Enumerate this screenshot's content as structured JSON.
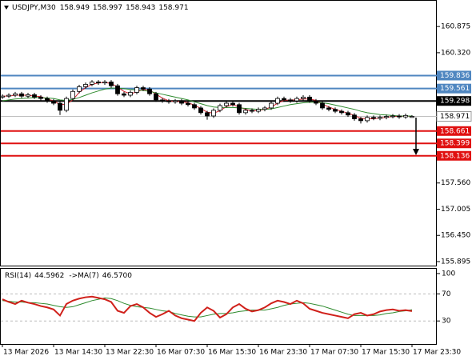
{
  "chart_data": [
    {
      "type": "candlestick",
      "symbol": "USDJPY,M30",
      "categories": [
        "13 Mar 2026",
        null,
        null,
        null,
        null,
        null,
        null,
        null,
        "13 Mar 14:30",
        null,
        null,
        null,
        null,
        null,
        null,
        null,
        "13 Mar 22:30",
        null,
        null,
        null,
        null,
        null,
        null,
        null,
        "16 Mar 07:30",
        null,
        null,
        null,
        null,
        null,
        null,
        null,
        "16 Mar 15:30",
        null,
        null,
        null,
        null,
        null,
        null,
        null,
        "16 Mar 23:30",
        null,
        null,
        null,
        null,
        null,
        null,
        null,
        "17 Mar 07:30",
        null,
        null,
        null,
        null,
        null,
        null,
        null,
        "17 Mar 15:30",
        null,
        null,
        null,
        null,
        null,
        null,
        null,
        "17 Mar 23:30"
      ],
      "open": [
        159.38,
        159.4,
        159.42,
        159.45,
        159.4,
        159.43,
        159.38,
        159.35,
        159.3,
        159.25,
        159.1,
        159.35,
        159.5,
        159.6,
        159.65,
        159.7,
        159.68,
        159.7,
        159.62,
        159.45,
        159.42,
        159.48,
        159.58,
        159.55,
        159.45,
        159.32,
        159.3,
        159.28,
        159.3,
        159.25,
        159.22,
        159.15,
        159.05,
        158.98,
        159.1,
        159.2,
        159.25,
        159.22,
        159.05,
        159.1,
        159.08,
        159.12,
        159.15,
        159.25,
        159.35,
        159.32,
        159.3,
        159.35,
        159.38,
        159.3,
        159.25,
        159.15,
        159.12,
        159.08,
        159.05,
        159.0,
        158.92,
        158.88,
        158.95,
        158.93,
        158.95,
        158.97,
        158.98,
        158.96,
        158.949
      ],
      "high": [
        159.44,
        159.46,
        159.49,
        159.49,
        159.47,
        159.47,
        159.42,
        159.39,
        159.34,
        159.29,
        159.39,
        159.54,
        159.64,
        159.69,
        159.74,
        159.74,
        159.74,
        159.74,
        159.66,
        159.49,
        159.52,
        159.62,
        159.62,
        159.59,
        159.49,
        159.36,
        159.34,
        159.34,
        159.34,
        159.29,
        159.26,
        159.19,
        159.09,
        159.14,
        159.24,
        159.29,
        159.29,
        159.26,
        159.14,
        159.14,
        159.16,
        159.19,
        159.29,
        159.39,
        159.39,
        159.36,
        159.39,
        159.42,
        159.42,
        159.34,
        159.29,
        159.19,
        159.16,
        159.12,
        159.09,
        159.04,
        158.96,
        158.99,
        158.99,
        158.99,
        159.01,
        159.02,
        159.02,
        159.03,
        158.997
      ],
      "low": [
        159.34,
        159.36,
        159.38,
        159.36,
        159.36,
        159.34,
        159.31,
        159.26,
        159.21,
        159.0,
        159.06,
        159.31,
        159.46,
        159.56,
        159.61,
        159.64,
        159.64,
        159.58,
        159.41,
        159.38,
        159.38,
        159.44,
        159.51,
        159.41,
        159.28,
        159.26,
        159.24,
        159.24,
        159.21,
        159.18,
        159.11,
        159.01,
        158.9,
        158.94,
        159.06,
        159.16,
        159.18,
        159.01,
        159.01,
        159.04,
        159.04,
        159.08,
        159.11,
        159.21,
        159.28,
        159.26,
        159.26,
        159.31,
        159.26,
        159.21,
        159.11,
        159.08,
        159.04,
        159.01,
        158.96,
        158.88,
        158.82,
        158.84,
        158.89,
        158.89,
        158.91,
        158.93,
        158.92,
        158.92,
        158.943
      ],
      "close": [
        159.4,
        159.42,
        159.45,
        159.4,
        159.43,
        159.38,
        159.35,
        159.3,
        159.25,
        159.1,
        159.35,
        159.5,
        159.6,
        159.65,
        159.7,
        159.68,
        159.7,
        159.62,
        159.45,
        159.42,
        159.48,
        159.58,
        159.55,
        159.45,
        159.32,
        159.3,
        159.28,
        159.3,
        159.25,
        159.22,
        159.15,
        159.05,
        158.98,
        159.1,
        159.2,
        159.25,
        159.22,
        159.05,
        159.1,
        159.08,
        159.12,
        159.15,
        159.25,
        159.35,
        159.32,
        159.3,
        159.35,
        159.38,
        159.3,
        159.25,
        159.15,
        159.12,
        159.08,
        159.05,
        159.0,
        158.92,
        158.88,
        158.95,
        158.93,
        158.95,
        158.97,
        158.98,
        158.96,
        158.99,
        158.971
      ],
      "up_color": "#ffffff",
      "down_color": "#000000",
      "overlays": [
        {
          "color": "#d0202a",
          "values": [
            159.4,
            159.4,
            159.42,
            159.42,
            159.42,
            159.4,
            159.39,
            159.34,
            159.3,
            159.22,
            159.23,
            159.32,
            159.48,
            159.58,
            159.65,
            159.68,
            159.69,
            159.67,
            159.59,
            159.5,
            159.45,
            159.49,
            159.54,
            159.53,
            159.44,
            159.36,
            159.3,
            159.29,
            159.28,
            159.26,
            159.21,
            159.14,
            159.06,
            159.04,
            159.09,
            159.18,
            159.22,
            159.17,
            159.12,
            159.08,
            159.1,
            159.12,
            159.17,
            159.25,
            159.31,
            159.32,
            159.32,
            159.34,
            159.34,
            159.31,
            159.23,
            159.17,
            159.12,
            159.08,
            159.04,
            158.99,
            158.93,
            158.92,
            158.92,
            158.94,
            158.95,
            158.97,
            158.97,
            158.98,
            158.97
          ]
        },
        {
          "color": "#2e8b2e",
          "values": [
            159.3,
            159.32,
            159.34,
            159.35,
            159.36,
            159.37,
            159.37,
            159.36,
            159.35,
            159.32,
            159.31,
            159.33,
            159.37,
            159.42,
            159.47,
            159.51,
            159.55,
            159.57,
            159.57,
            159.56,
            159.54,
            159.53,
            159.52,
            159.5,
            159.47,
            159.44,
            159.41,
            159.38,
            159.35,
            159.32,
            159.28,
            159.24,
            159.2,
            159.17,
            159.16,
            159.16,
            159.16,
            159.15,
            159.14,
            159.13,
            159.12,
            159.12,
            159.13,
            159.16,
            159.19,
            159.22,
            159.24,
            159.26,
            159.27,
            159.27,
            159.26,
            159.24,
            159.21,
            159.18,
            159.15,
            159.12,
            159.08,
            159.05,
            159.03,
            159.01,
            159.0,
            158.99,
            158.98,
            158.98,
            158.98
          ]
        }
      ],
      "levels": [
        {
          "value": 159.836,
          "color": "#4f86c0"
        },
        {
          "value": 159.561,
          "color": "#4f86c0"
        },
        {
          "value": 159.298,
          "color": "#000000"
        },
        {
          "value": 158.661,
          "color": "#e01010"
        },
        {
          "value": 158.399,
          "color": "#e01010"
        },
        {
          "value": 158.136,
          "color": "#e01010"
        }
      ],
      "ylim": [
        155.81,
        161.42
      ],
      "yticks": [
        160.875,
        {
          "value": 160.32,
          "label": "160.320"
        },
        {
          "value": 157.56,
          "label": "157.560"
        },
        157.005,
        {
          "value": 156.45,
          "label": "156.450"
        },
        155.895
      ]
    },
    {
      "type": "line",
      "label": "RSI(14)",
      "ma_label": "->MA(7)",
      "series": [
        {
          "color": "#d0201a",
          "values": [
            62,
            58,
            55,
            60,
            57,
            55,
            52,
            50,
            47,
            38,
            55,
            60,
            63,
            65,
            66,
            64,
            62,
            58,
            45,
            42,
            52,
            55,
            50,
            42,
            36,
            40,
            45,
            38,
            34,
            32,
            30,
            42,
            50,
            45,
            35,
            40,
            50,
            55,
            48,
            44,
            46,
            50,
            56,
            60,
            58,
            55,
            60,
            56,
            48,
            45,
            42,
            40,
            38,
            36,
            34,
            40,
            42,
            38,
            40,
            44,
            46,
            47,
            45,
            46,
            44.5962
          ]
        },
        {
          "color": "#2e8b2e",
          "values": [
            60,
            59,
            58,
            58,
            57,
            57,
            56,
            55,
            53,
            51,
            50,
            51,
            54,
            57,
            60,
            62,
            64,
            63,
            60,
            56,
            53,
            51,
            50,
            49,
            47,
            45,
            44,
            41,
            39,
            37,
            36,
            36,
            38,
            40,
            41,
            41,
            42,
            44,
            45,
            46,
            46,
            46,
            48,
            50,
            53,
            55,
            56,
            57,
            56,
            54,
            52,
            49,
            46,
            43,
            40,
            38,
            38,
            38,
            38,
            39,
            41,
            42,
            44,
            45,
            46.57
          ]
        }
      ],
      "ma_readout": {
        "value": 46.57,
        "label": "46.5700"
      },
      "levels": [
        70,
        30
      ],
      "ylim": [
        -4,
        107
      ],
      "yticks": [
        100,
        70,
        30
      ]
    }
  ]
}
